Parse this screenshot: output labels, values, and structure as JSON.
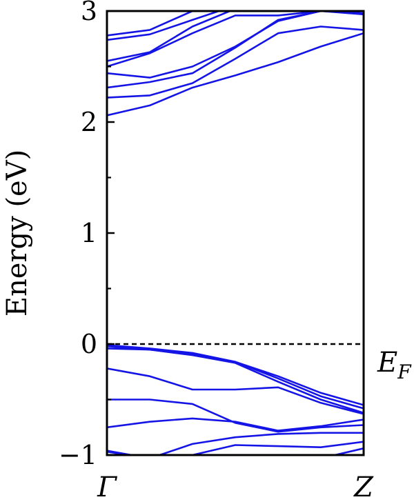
{
  "chart_data": {
    "type": "line",
    "title": "",
    "ylabel": "Energy (eV)",
    "xlabel": "",
    "x_ticks": [
      "Γ",
      "Z"
    ],
    "xlim": [
      0,
      1
    ],
    "ylim": [
      -1,
      3
    ],
    "y_ticks": [
      "−1",
      "0",
      "1",
      "2",
      "3"
    ],
    "y_tick_values": [
      -1,
      0,
      1,
      2,
      3
    ],
    "y_minor_step": 0.5,
    "fermi_level": {
      "value": 0,
      "label_main": "E",
      "label_sub": "F",
      "style": "dashed"
    },
    "band_color": "#1414e6",
    "x": [
      0,
      0.167,
      0.333,
      0.5,
      0.667,
      0.833,
      1
    ],
    "series": [
      {
        "values": [
          2.06,
          2.15,
          2.31,
          2.42,
          2.54,
          2.68,
          2.8
        ]
      },
      {
        "values": [
          2.22,
          2.24,
          2.35,
          2.57,
          2.8,
          2.86,
          2.83
        ]
      },
      {
        "values": [
          2.31,
          2.36,
          2.44,
          2.67,
          2.92,
          3.0,
          3.0
        ]
      },
      {
        "values": [
          2.44,
          2.4,
          2.5,
          2.68,
          2.91,
          3.0,
          2.98
        ]
      },
      {
        "values": [
          2.5,
          2.62,
          2.8,
          2.96,
          2.96,
          3.0,
          2.97
        ]
      },
      {
        "values": [
          2.55,
          2.63,
          2.86,
          3.02,
          3.05,
          3.05,
          3.05
        ]
      },
      {
        "values": [
          2.74,
          2.79,
          2.92,
          3.05,
          3.05,
          3.05,
          3.05
        ]
      },
      {
        "values": [
          2.78,
          2.83,
          3.0,
          3.05,
          3.05,
          3.05,
          3.05
        ]
      },
      {
        "values": [
          -0.01,
          -0.04,
          -0.08,
          -0.16,
          -0.29,
          -0.44,
          -0.55
        ]
      },
      {
        "values": [
          -0.02,
          -0.05,
          -0.09,
          -0.16,
          -0.31,
          -0.47,
          -0.58
        ]
      },
      {
        "values": [
          -0.04,
          -0.05,
          -0.1,
          -0.17,
          -0.34,
          -0.5,
          -0.62
        ]
      },
      {
        "values": [
          -0.22,
          -0.29,
          -0.41,
          -0.41,
          -0.39,
          -0.53,
          -0.63
        ]
      },
      {
        "values": [
          -0.5,
          -0.5,
          -0.54,
          -0.71,
          -0.79,
          -0.75,
          -0.73
        ]
      },
      {
        "values": [
          -0.75,
          -0.7,
          -0.67,
          -0.7,
          -0.78,
          -0.74,
          -0.68
        ]
      },
      {
        "values": [
          -0.97,
          -1.03,
          -0.9,
          -0.84,
          -0.81,
          -0.8,
          -0.8
        ]
      },
      {
        "values": [
          -1.05,
          -1.05,
          -1.0,
          -0.91,
          -0.92,
          -0.93,
          -0.88
        ]
      },
      {
        "values": [
          -0.96,
          -1.03,
          -1.05,
          -1.05,
          -1.05,
          -1.03,
          -0.94
        ]
      }
    ]
  }
}
